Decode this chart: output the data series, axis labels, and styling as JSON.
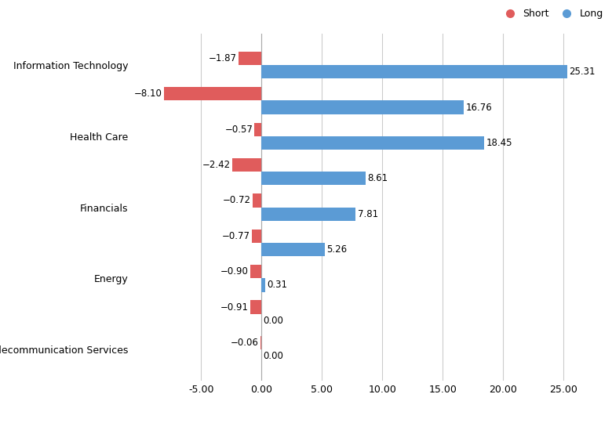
{
  "groups": [
    {
      "label": "Information Technology",
      "short": -1.87,
      "long": 25.31
    },
    {
      "label": "",
      "short": -8.1,
      "long": 16.76
    },
    {
      "label": "Health Care",
      "short": -0.57,
      "long": 18.45
    },
    {
      "label": "",
      "short": -2.42,
      "long": 8.61
    },
    {
      "label": "Financials",
      "short": -0.72,
      "long": 7.81
    },
    {
      "label": "",
      "short": -0.77,
      "long": 5.26
    },
    {
      "label": "Energy",
      "short": -0.9,
      "long": 0.31
    },
    {
      "label": "",
      "short": -0.91,
      "long": 0.0
    },
    {
      "label": "Telecommunication Services",
      "short": -0.06,
      "long": 0.0
    }
  ],
  "short_color": "#e05c5c",
  "long_color": "#5b9bd5",
  "background_color": "#ffffff",
  "grid_color": "#cccccc",
  "xlim": [
    -10.5,
    27.5
  ],
  "xticks": [
    -5.0,
    0.0,
    5.0,
    10.0,
    15.0,
    20.0,
    25.0
  ],
  "bar_height": 0.38,
  "legend_short": "Short",
  "legend_long": "Long",
  "label_fontsize": 9,
  "tick_fontsize": 9,
  "value_fontsize": 8.5
}
